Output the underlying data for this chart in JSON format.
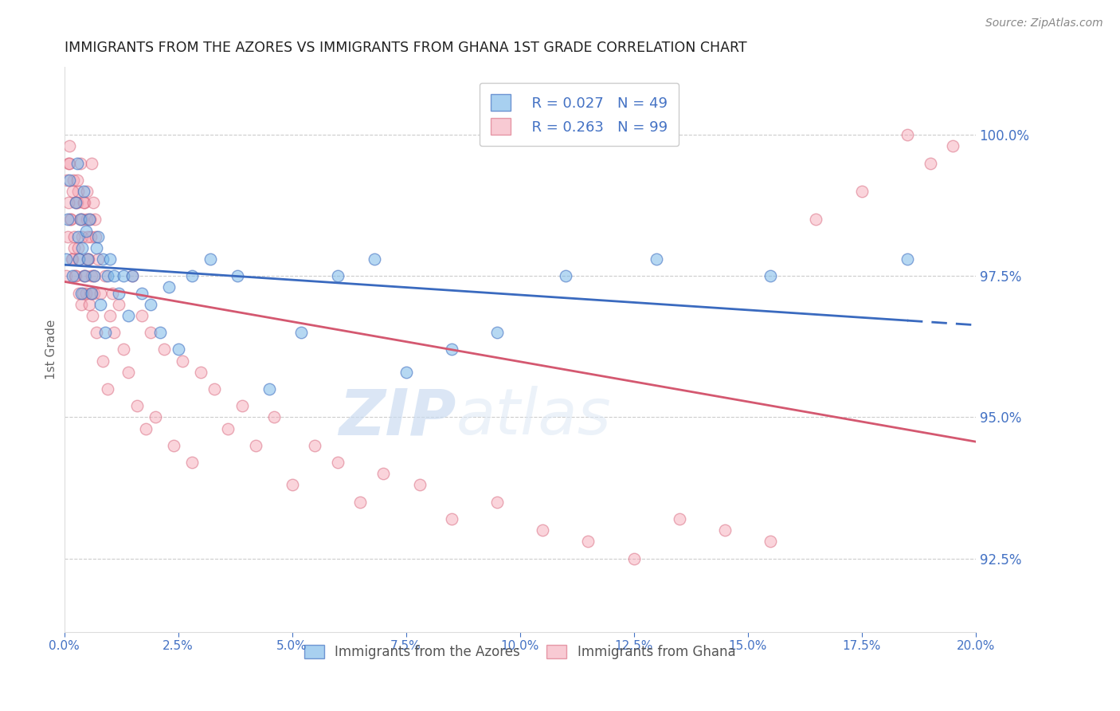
{
  "title": "IMMIGRANTS FROM THE AZORES VS IMMIGRANTS FROM GHANA 1ST GRADE CORRELATION CHART",
  "source": "Source: ZipAtlas.com",
  "ylabel": "1st Grade",
  "watermark_zip": "ZIP",
  "watermark_atlas": "atlas",
  "legend": {
    "azores_R": "R = 0.027",
    "azores_N": "N = 49",
    "ghana_R": "R = 0.263",
    "ghana_N": "N = 99",
    "azores_label": "Immigrants from the Azores",
    "ghana_label": "Immigrants from Ghana"
  },
  "yticks": [
    92.5,
    95.0,
    97.5,
    100.0
  ],
  "xlim": [
    0.0,
    20.0
  ],
  "ylim": [
    91.2,
    101.2
  ],
  "blue_color": "#7ab8e8",
  "pink_color": "#f4a0b0",
  "blue_line_color": "#3a6abf",
  "pink_line_color": "#d45870",
  "axis_color": "#4472C4",
  "grid_color": "#cccccc",
  "azores_x": [
    0.05,
    0.08,
    0.12,
    0.18,
    0.25,
    0.28,
    0.3,
    0.32,
    0.35,
    0.38,
    0.4,
    0.42,
    0.45,
    0.48,
    0.52,
    0.55,
    0.6,
    0.65,
    0.7,
    0.75,
    0.8,
    0.85,
    0.9,
    0.95,
    1.0,
    1.1,
    1.2,
    1.3,
    1.4,
    1.5,
    1.7,
    1.9,
    2.1,
    2.3,
    2.5,
    2.8,
    3.2,
    3.8,
    4.5,
    5.2,
    6.0,
    6.8,
    7.5,
    8.5,
    9.5,
    11.0,
    13.0,
    15.5,
    18.5
  ],
  "azores_y": [
    97.8,
    98.5,
    99.2,
    97.5,
    98.8,
    99.5,
    98.2,
    97.8,
    98.5,
    97.2,
    98.0,
    99.0,
    97.5,
    98.3,
    97.8,
    98.5,
    97.2,
    97.5,
    98.0,
    98.2,
    97.0,
    97.8,
    96.5,
    97.5,
    97.8,
    97.5,
    97.2,
    97.5,
    96.8,
    97.5,
    97.2,
    97.0,
    96.5,
    97.3,
    96.2,
    97.5,
    97.8,
    97.5,
    95.5,
    96.5,
    97.5,
    97.8,
    95.8,
    96.2,
    96.5,
    97.5,
    97.8,
    97.5,
    97.8
  ],
  "ghana_x": [
    0.05,
    0.08,
    0.1,
    0.12,
    0.15,
    0.18,
    0.2,
    0.22,
    0.25,
    0.28,
    0.3,
    0.32,
    0.35,
    0.38,
    0.4,
    0.42,
    0.45,
    0.48,
    0.5,
    0.52,
    0.55,
    0.58,
    0.6,
    0.62,
    0.65,
    0.68,
    0.7,
    0.75,
    0.8,
    0.85,
    0.9,
    0.95,
    1.0,
    1.05,
    1.1,
    1.2,
    1.3,
    1.4,
    1.5,
    1.6,
    1.7,
    1.8,
    1.9,
    2.0,
    2.2,
    2.4,
    2.6,
    2.8,
    3.0,
    3.3,
    3.6,
    3.9,
    4.2,
    4.6,
    5.0,
    5.5,
    6.0,
    6.5,
    7.0,
    7.8,
    8.5,
    9.5,
    10.5,
    11.5,
    12.5,
    13.5,
    14.5,
    15.5,
    16.5,
    17.5,
    18.5,
    19.0,
    19.5,
    0.06,
    0.09,
    0.11,
    0.13,
    0.16,
    0.19,
    0.21,
    0.23,
    0.26,
    0.29,
    0.31,
    0.33,
    0.36,
    0.39,
    0.41,
    0.43,
    0.46,
    0.49,
    0.51,
    0.53,
    0.56,
    0.59,
    0.61,
    0.63,
    0.66,
    0.69
  ],
  "ghana_y": [
    97.5,
    98.2,
    99.5,
    99.8,
    98.5,
    97.8,
    99.2,
    98.0,
    97.5,
    98.8,
    99.0,
    97.2,
    98.5,
    97.0,
    98.2,
    97.5,
    98.8,
    97.2,
    98.5,
    97.8,
    97.0,
    98.2,
    97.5,
    96.8,
    97.2,
    98.5,
    96.5,
    97.8,
    97.2,
    96.0,
    97.5,
    95.5,
    96.8,
    97.2,
    96.5,
    97.0,
    96.2,
    95.8,
    97.5,
    95.2,
    96.8,
    94.8,
    96.5,
    95.0,
    96.2,
    94.5,
    96.0,
    94.2,
    95.8,
    95.5,
    94.8,
    95.2,
    94.5,
    95.0,
    93.8,
    94.5,
    94.2,
    93.5,
    94.0,
    93.8,
    93.2,
    93.5,
    93.0,
    92.8,
    92.5,
    93.2,
    93.0,
    92.8,
    98.5,
    99.0,
    100.0,
    99.5,
    99.8,
    99.2,
    98.8,
    99.5,
    98.5,
    97.8,
    99.0,
    98.2,
    97.5,
    98.8,
    99.2,
    98.0,
    97.8,
    99.5,
    98.5,
    97.2,
    98.8,
    97.5,
    99.0,
    98.2,
    97.8,
    98.5,
    97.2,
    99.5,
    98.8,
    97.5,
    98.2
  ]
}
